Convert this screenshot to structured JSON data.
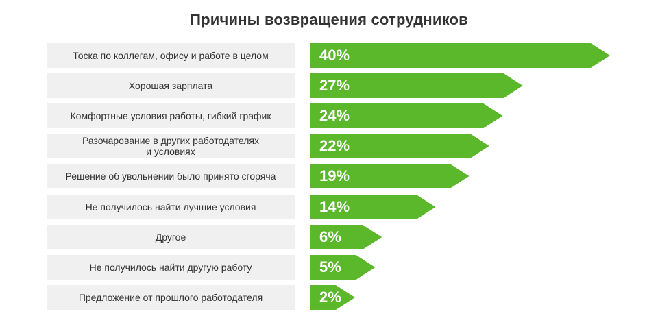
{
  "chart_data": {
    "type": "bar",
    "orientation": "horizontal",
    "title": "Причины возвращения сотрудников",
    "categories": [
      "Тоска по коллегам, офису и работе в целом",
      "Хорошая зарплата",
      "Комфортные условия работы, гибкий график",
      "Разочарование в других работодателях\nи условиях",
      "Решение об увольнении было принято сгоряча",
      "Не получилось найти лучшие условия",
      "Другое",
      "Не получилось найти другую работу",
      "Предложение от прошлого работодателя"
    ],
    "values": [
      40,
      27,
      24,
      22,
      19,
      14,
      6,
      5,
      2
    ],
    "value_labels": [
      "40%",
      "27%",
      "24%",
      "22%",
      "19%",
      "14%",
      "6%",
      "5%",
      "2%"
    ],
    "unit": "%",
    "bar_color": "#5ab82a",
    "label_box_color": "#f0f0f0"
  }
}
